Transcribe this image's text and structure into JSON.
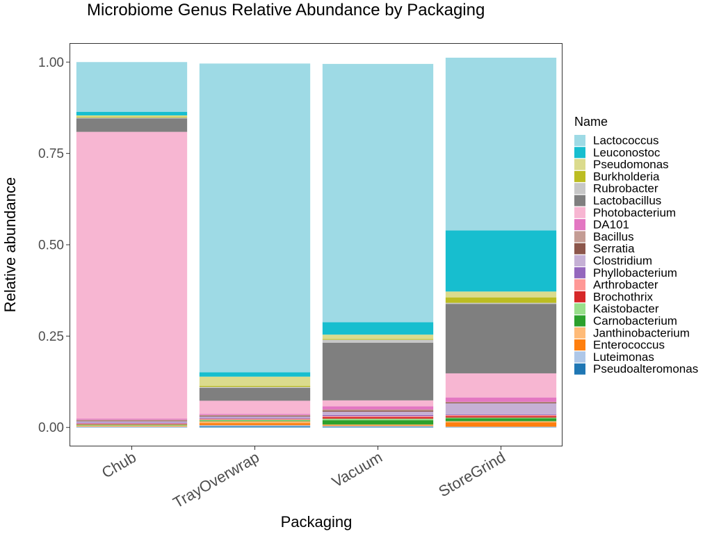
{
  "chart_data": {
    "type": "bar",
    "stacked": true,
    "title": "Microbiome Genus Relative Abundance by Packaging",
    "xlabel": "Packaging",
    "ylabel": "Relative abundance",
    "ylim": [
      -0.05,
      1.05
    ],
    "yticks": [
      0,
      0.25,
      0.5,
      0.75,
      1
    ],
    "ytick_labels": [
      "0.00",
      "0.25",
      "0.50",
      "0.75",
      "1.00"
    ],
    "categories": [
      "Chub",
      "TrayOverwrap",
      "Vacuum",
      "StoreGrind"
    ],
    "grid": false,
    "legend": {
      "title": "Name",
      "position": "right"
    },
    "series": [
      {
        "name": "Lactococcus",
        "color": "#9edae5",
        "values": [
          0.136,
          0.845,
          0.707,
          0.473
        ]
      },
      {
        "name": "Leuconostoc",
        "color": "#17becf",
        "values": [
          0.01,
          0.012,
          0.034,
          0.167
        ]
      },
      {
        "name": "Pseudomonas",
        "color": "#dbdb8d",
        "values": [
          0.004,
          0.025,
          0.012,
          0.016
        ]
      },
      {
        "name": "Burkholderia",
        "color": "#bcbd22",
        "values": [
          0.002,
          0.003,
          0.002,
          0.015
        ]
      },
      {
        "name": "Rubrobacter",
        "color": "#c7c7c7",
        "values": [
          0.002,
          0.003,
          0.008,
          0.003
        ]
      },
      {
        "name": "Lactobacillus",
        "color": "#7f7f7f",
        "values": [
          0.037,
          0.035,
          0.158,
          0.19
        ]
      },
      {
        "name": "Photobacterium",
        "color": "#f7b6d2",
        "values": [
          0.785,
          0.036,
          0.016,
          0.066
        ]
      },
      {
        "name": "DA101",
        "color": "#e377c2",
        "values": [
          0.003,
          0.003,
          0.009,
          0.012
        ]
      },
      {
        "name": "Bacillus",
        "color": "#c49c94",
        "values": [
          0.002,
          0.002,
          0.003,
          0.002
        ]
      },
      {
        "name": "Serratia",
        "color": "#8c564b",
        "values": [
          0.002,
          0.002,
          0.003,
          0.002
        ]
      },
      {
        "name": "Clostridium",
        "color": "#c5b0d5",
        "values": [
          0.004,
          0.004,
          0.009,
          0.03
        ]
      },
      {
        "name": "Phyllobacterium",
        "color": "#9467bd",
        "values": [
          0.002,
          0.002,
          0.003,
          0.002
        ]
      },
      {
        "name": "Arthrobacter",
        "color": "#ff9896",
        "values": [
          0.002,
          0.002,
          0.003,
          0.003
        ]
      },
      {
        "name": "Brochothrix",
        "color": "#d62728",
        "values": [
          0.001,
          0.001,
          0.004,
          0.004
        ]
      },
      {
        "name": "Kaistobacter",
        "color": "#98df8a",
        "values": [
          0.002,
          0.002,
          0.004,
          0.002
        ]
      },
      {
        "name": "Carnobacterium",
        "color": "#2ca02c",
        "values": [
          0.001,
          0.002,
          0.012,
          0.008
        ]
      },
      {
        "name": "Janthinobacterium",
        "color": "#ffbb78",
        "values": [
          0.002,
          0.005,
          0.002,
          0.003
        ]
      },
      {
        "name": "Enterococcus",
        "color": "#ff7f0e",
        "values": [
          0.001,
          0.006,
          0.002,
          0.012
        ]
      },
      {
        "name": "Luteimonas",
        "color": "#aec7e8",
        "values": [
          0.001,
          0.003,
          0.002,
          0.001
        ]
      },
      {
        "name": "Pseudoalteromonas",
        "color": "#1f77b4",
        "values": [
          0.001,
          0.003,
          0.002,
          0.001
        ]
      }
    ]
  }
}
